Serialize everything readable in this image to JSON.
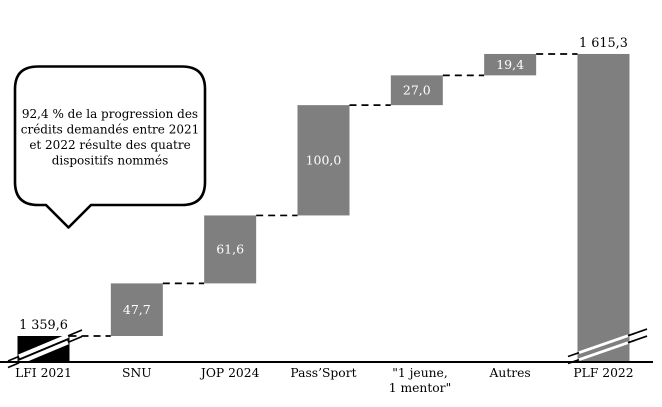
{
  "chart_data": {
    "type": "bar",
    "subtype": "waterfall",
    "title": "",
    "xlabel": "",
    "ylabel": "",
    "categories": [
      "LFI 2021",
      "SNU",
      "JOP 2024",
      "Pass’Sport",
      "\"1 jeune, 1 mentor\"",
      "Autres",
      "PLF 2022"
    ],
    "columns": [
      {
        "label_lines": [
          "LFI 2021"
        ],
        "role": "total-start",
        "value": 1359.6,
        "display_value": "1 359,6",
        "bar_color": "#000000",
        "value_label_position": "above",
        "axis_break": true
      },
      {
        "label_lines": [
          "SNU"
        ],
        "role": "increment",
        "value": 47.7,
        "display_value": "47,7",
        "bar_color": "#7f7f7f",
        "value_label_position": "inside",
        "axis_break": false
      },
      {
        "label_lines": [
          "JOP 2024"
        ],
        "role": "increment",
        "value": 61.6,
        "display_value": "61,6",
        "bar_color": "#7f7f7f",
        "value_label_position": "inside",
        "axis_break": false
      },
      {
        "label_lines": [
          "Pass’Sport"
        ],
        "role": "increment",
        "value": 100.0,
        "display_value": "100,0",
        "bar_color": "#7f7f7f",
        "value_label_position": "inside",
        "axis_break": false
      },
      {
        "label_lines": [
          "\"1 jeune,",
          "1 mentor\""
        ],
        "role": "increment",
        "value": 27.0,
        "display_value": "27,0",
        "bar_color": "#7f7f7f",
        "value_label_position": "inside",
        "axis_break": false
      },
      {
        "label_lines": [
          "Autres"
        ],
        "role": "increment",
        "value": 19.4,
        "display_value": "19,4",
        "bar_color": "#7f7f7f",
        "value_label_position": "inside",
        "axis_break": false
      },
      {
        "label_lines": [
          "PLF 2022"
        ],
        "role": "total-end",
        "value": 1615.3,
        "display_value": "1 615,3",
        "bar_color": "#7f7f7f",
        "value_label_position": "above",
        "axis_break": true
      }
    ],
    "axis": {
      "baseline_visible": true,
      "y_axis_visible": false,
      "gridlines": false,
      "broken_axis": true
    },
    "legend": {
      "visible": false
    },
    "connector_style": "dashed"
  },
  "annotation": {
    "shape": "speech-bubble",
    "lines": [
      "92,4 % de la progression des",
      "crédits demandés entre 2021",
      "et 2022 résulte des quatre",
      "dispositifs nommés"
    ],
    "text": "92,4 % de la progression des crédits demandés entre 2021 et 2022 résulte des quatre dispositifs nommés"
  },
  "colors": {
    "increment_bar": "#7f7f7f",
    "start_bar": "#000000",
    "inside_value_text": "#ffffff",
    "outside_value_text": "#000000",
    "axis_line": "#000000",
    "connector": "#000000",
    "background": "#ffffff",
    "bubble_fill": "#ffffff",
    "bubble_border": "#000000"
  }
}
